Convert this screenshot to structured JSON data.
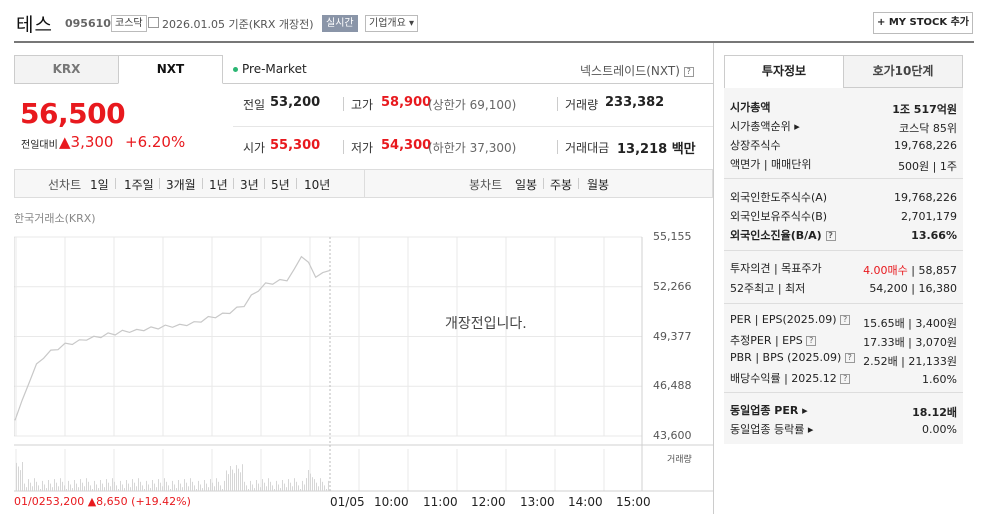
{
  "header": {
    "stock_name": "테스",
    "stock_code": "095610",
    "market_tag": "코스닥",
    "date_text": "2026.01.05  기준(KRX 개장전)",
    "realtime_tag": "실시간",
    "overview_tag": "기업개요 ▾",
    "mystock_button": "+ MY STOCK 추가"
  },
  "tabs": {
    "krx": "KRX",
    "nxt": "NXT"
  },
  "session": {
    "premarket": "Pre-Market",
    "nxt_name": "넥스트레이드(NXT)"
  },
  "price": {
    "current": "56,500",
    "change_label": "전일대비",
    "change_value": "▲3,300",
    "change_rate": "+6.20%"
  },
  "quotes": {
    "prev_close_label": "전일",
    "prev_close": "53,200",
    "high_label": "고가",
    "high": "58,900",
    "upper_limit": "(상한가 69,100)",
    "volume_label": "거래량",
    "volume": "233,382",
    "open_label": "시가",
    "open": "55,300",
    "low_label": "저가",
    "low": "54,300",
    "lower_limit": "(하한가 37,300)",
    "amount_label": "거래대금",
    "amount": "13,218 백만"
  },
  "period_bar": {
    "line_label": "선차트",
    "line_periods": [
      "1일",
      "1주일",
      "3개월",
      "1년",
      "3년",
      "5년",
      "10년"
    ],
    "candle_label": "봉차트",
    "candle_periods": [
      "일봉",
      "주봉",
      "월봉"
    ]
  },
  "chart": {
    "exchange_label": "한국거래소(KRX)",
    "no_open_text": "개장전입니다.",
    "volume_label": "거래량",
    "prev_info_price": "01/0253,200",
    "prev_info_change": "▲8,650 (+19.42%)"
  },
  "chart_data": {
    "type": "line",
    "y_ticks": [
      "55,155",
      "52,266",
      "49,377",
      "46,488",
      "43,600"
    ],
    "ylim": [
      43600,
      55155
    ],
    "x_ticks": [
      "01/05",
      "10:00",
      "11:00",
      "12:00",
      "13:00",
      "14:00",
      "15:00"
    ],
    "series": [
      {
        "values": [
          44600,
          45600,
          46800,
          47700,
          48200,
          48500,
          48700,
          48900,
          49000,
          49100,
          49250,
          49300,
          49400,
          49500,
          49550,
          49650,
          49700,
          49700,
          49800,
          49850,
          49900,
          49950,
          50000,
          50000,
          50100,
          50150,
          50300,
          50450,
          50550,
          50650,
          50800,
          51000,
          51200,
          51700,
          52100,
          52400,
          52500,
          52600,
          52700,
          53200,
          54100,
          53600,
          52900,
          53000,
          53300
        ]
      }
    ]
  },
  "invest_panel": {
    "tab_invest": "투자정보",
    "tab_hoga": "호가10단계",
    "rows1": [
      {
        "label": "시가총액",
        "value": "1조 517억원"
      },
      {
        "label": "시가총액순위 ▸",
        "value": "코스닥 85위"
      },
      {
        "label": "상장주식수",
        "value": "19,768,226"
      },
      {
        "label": "액면가 | 매매단위",
        "value": "500원 | 1주"
      }
    ],
    "rows2": [
      {
        "label": "외국인한도주식수(A)",
        "value": "19,768,226"
      },
      {
        "label": "외국인보유주식수(B)",
        "value": "2,701,179"
      },
      {
        "label": "외국인소진율(B/A)",
        "value": "13.66%"
      }
    ],
    "rows3": [
      {
        "label": "투자의견 | 목표주가",
        "value_colored": "4.00매수",
        "value": "| 58,857"
      },
      {
        "label": "52주최고 | 최저",
        "value": "54,200 | 16,380"
      }
    ],
    "rows4": [
      {
        "label": "PER | EPS(2025.09)",
        "value": "15.65배 | 3,400원"
      },
      {
        "label": "추정PER | EPS",
        "value": "17.33배 | 3,070원"
      },
      {
        "label": "PBR | BPS (2025.09)",
        "value": "2.52배 | 21,133원"
      },
      {
        "label": "배당수익률 | 2025.12",
        "value": "1.60%"
      }
    ],
    "rows5": [
      {
        "label": "동일업종 PER ▸",
        "value": "18.12배"
      },
      {
        "label": "동일업종 등락률 ▸",
        "value": "0.00%"
      }
    ]
  },
  "colors": {
    "up": "#e8191e",
    "accent": "#1a5fcc"
  }
}
